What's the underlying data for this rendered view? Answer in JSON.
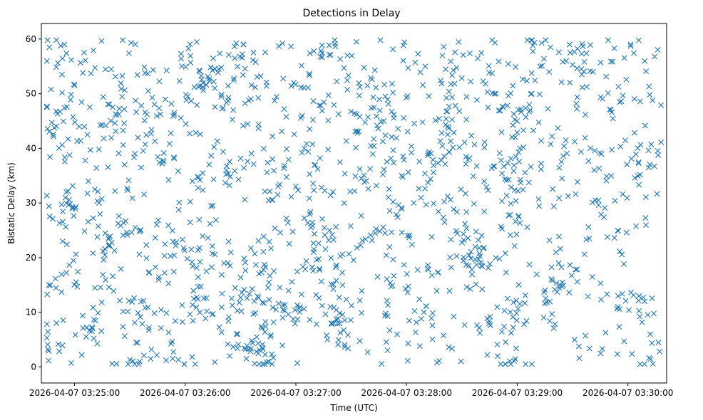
{
  "chart_data": {
    "type": "scatter",
    "title": "Detections in Delay",
    "xlabel": "Time (UTC)",
    "ylabel": "Bistatic Delay (km)",
    "marker": "x",
    "color": "#1f77b4",
    "xlim_seconds": [
      -18,
      321
    ],
    "ylim": [
      -2.95,
      62.85
    ],
    "x_tick_values_seconds": [
      0,
      60,
      120,
      180,
      240,
      300
    ],
    "x_tick_labels": [
      "2026-04-07 03:25:00",
      "2026-04-07 03:26:00",
      "2026-04-07 03:27:00",
      "2026-04-07 03:28:00",
      "2026-04-07 03:29:00",
      "2026-04-07 03:30:00"
    ],
    "y_ticks": [
      0,
      10,
      20,
      30,
      40,
      50,
      60
    ],
    "y_tick_labels": [
      "0",
      "10",
      "20",
      "30",
      "40",
      "50",
      "60"
    ],
    "time_range_seconds": [
      -15,
      318
    ],
    "delay_range_km": [
      0.5,
      59.8
    ],
    "n_points": 1500,
    "seed": 20260407
  }
}
